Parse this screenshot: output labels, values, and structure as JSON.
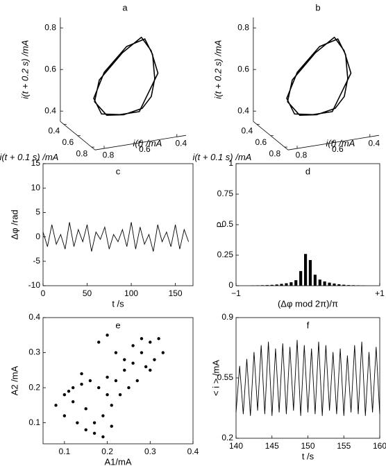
{
  "chart_data": [
    {
      "type": "line3d",
      "title": "a",
      "xlabel": "i(t) /mA",
      "ylabel": "i(t + 0.1 s) /mA",
      "zlabel": "i(t + 0.2 s) /mA",
      "xlim": [
        0.35,
        0.85
      ],
      "ylim": [
        0.35,
        0.85
      ],
      "zlim": [
        0.35,
        0.85
      ],
      "xticks": [
        0.4,
        0.6,
        0.8
      ],
      "yticks": [
        0.4,
        0.6,
        0.8
      ],
      "zticks": [
        0.4,
        0.6,
        0.8
      ],
      "x": [
        0.35,
        0.4,
        0.5,
        0.65,
        0.78,
        0.8,
        0.7,
        0.55,
        0.42,
        0.36,
        0.34,
        0.42,
        0.53,
        0.68,
        0.8,
        0.78,
        0.66,
        0.52,
        0.4,
        0.35
      ],
      "y": [
        0.4,
        0.5,
        0.65,
        0.78,
        0.8,
        0.7,
        0.55,
        0.42,
        0.36,
        0.34,
        0.42,
        0.53,
        0.68,
        0.8,
        0.78,
        0.66,
        0.52,
        0.4,
        0.35,
        0.35
      ],
      "z": [
        0.5,
        0.65,
        0.78,
        0.8,
        0.7,
        0.55,
        0.42,
        0.36,
        0.34,
        0.42,
        0.53,
        0.68,
        0.8,
        0.78,
        0.66,
        0.52,
        0.4,
        0.35,
        0.35,
        0.4
      ],
      "color": "#000000"
    },
    {
      "type": "line3d",
      "title": "b",
      "xlabel": "i(t) /mA",
      "ylabel": "i(t + 0.1 s) /mA",
      "zlabel": "i(t + 0.2 s) /mA",
      "xlim": [
        0.35,
        0.85
      ],
      "ylim": [
        0.35,
        0.85
      ],
      "zlim": [
        0.35,
        0.85
      ],
      "xticks": [
        0.4,
        0.6,
        0.8
      ],
      "yticks": [
        0.4,
        0.6,
        0.8
      ],
      "zticks": [
        0.4,
        0.6,
        0.8
      ],
      "x": [
        0.35,
        0.4,
        0.5,
        0.65,
        0.78,
        0.8,
        0.7,
        0.55,
        0.42,
        0.36,
        0.34,
        0.42,
        0.53,
        0.68,
        0.8,
        0.78,
        0.66,
        0.52,
        0.4,
        0.35
      ],
      "y": [
        0.4,
        0.5,
        0.65,
        0.78,
        0.8,
        0.7,
        0.55,
        0.42,
        0.36,
        0.34,
        0.42,
        0.53,
        0.68,
        0.8,
        0.78,
        0.66,
        0.52,
        0.4,
        0.35,
        0.35
      ],
      "z": [
        0.5,
        0.65,
        0.78,
        0.8,
        0.7,
        0.55,
        0.42,
        0.36,
        0.34,
        0.42,
        0.53,
        0.68,
        0.8,
        0.78,
        0.66,
        0.52,
        0.4,
        0.35,
        0.35,
        0.4
      ],
      "color": "#000000"
    },
    {
      "type": "line",
      "title": "c",
      "xlabel": "t /s",
      "ylabel": "Δφ /rad",
      "xlim": [
        0,
        170
      ],
      "ylim": [
        -10,
        15
      ],
      "xticks": [
        0,
        50,
        100,
        150
      ],
      "yticks": [
        -10,
        -5,
        0,
        5,
        10,
        15
      ],
      "x": [
        0,
        5,
        10,
        15,
        20,
        25,
        30,
        35,
        40,
        45,
        50,
        55,
        60,
        65,
        70,
        75,
        80,
        85,
        90,
        95,
        100,
        105,
        110,
        115,
        120,
        125,
        130,
        135,
        140,
        145,
        150,
        155,
        160,
        165
      ],
      "values": [
        1,
        -2,
        2.5,
        -1.5,
        0.5,
        -2.5,
        3,
        -2,
        1.5,
        -1,
        2.5,
        -3,
        1,
        -0.5,
        2,
        -2.5,
        0.5,
        -1,
        1.5,
        -2,
        3,
        -2.5,
        2,
        -1.5,
        0.5,
        -3,
        2.5,
        -1,
        1,
        -2,
        2.5,
        -2.5,
        1.5,
        -1
      ],
      "color": "#000000"
    },
    {
      "type": "bar",
      "title": "d",
      "xlabel": "(Δφ mod 2π)/π",
      "ylabel": "P",
      "xlim": [
        -1,
        1
      ],
      "ylim": [
        0,
        1
      ],
      "xticks": [
        {
          "value": -1,
          "label": "−1"
        },
        {
          "value": 1,
          "label": "+1"
        }
      ],
      "yticks": [
        0,
        0.25,
        0.5,
        0.75,
        1
      ],
      "x": [
        -0.967,
        -0.9,
        -0.833,
        -0.767,
        -0.7,
        -0.633,
        -0.567,
        -0.5,
        -0.433,
        -0.367,
        -0.3,
        -0.233,
        -0.167,
        -0.1,
        -0.033,
        0.033,
        0.1,
        0.167,
        0.233,
        0.3,
        0.367,
        0.433,
        0.5,
        0.567,
        0.633,
        0.7,
        0.767,
        0.833,
        0.9,
        0.967
      ],
      "values": [
        0,
        0,
        0,
        0.002,
        0.003,
        0.004,
        0.005,
        0.007,
        0.01,
        0.015,
        0.02,
        0.028,
        0.045,
        0.12,
        0.26,
        0.21,
        0.09,
        0.05,
        0.035,
        0.025,
        0.018,
        0.012,
        0.008,
        0.005,
        0.004,
        0.003,
        0.002,
        0,
        0,
        0
      ],
      "color": "#000000"
    },
    {
      "type": "scatter",
      "title": "e",
      "xlabel": "A1/mA",
      "ylabel": "A2 /mA",
      "xlim": [
        0.05,
        0.4
      ],
      "ylim": [
        0.04,
        0.4
      ],
      "xticks": [
        0.1,
        0.2,
        0.3,
        0.4
      ],
      "yticks": [
        0.1,
        0.2,
        0.3,
        0.4
      ],
      "x": [
        0.08,
        0.1,
        0.12,
        0.14,
        0.16,
        0.18,
        0.2,
        0.22,
        0.24,
        0.26,
        0.28,
        0.3,
        0.32,
        0.1,
        0.13,
        0.15,
        0.17,
        0.19,
        0.21,
        0.23,
        0.25,
        0.27,
        0.29,
        0.31,
        0.33,
        0.18,
        0.2,
        0.22,
        0.24,
        0.26,
        0.28,
        0.3,
        0.12,
        0.15,
        0.17,
        0.19,
        0.21,
        0.11,
        0.14,
        0.2
      ],
      "values": [
        0.15,
        0.18,
        0.2,
        0.21,
        0.22,
        0.2,
        0.23,
        0.22,
        0.25,
        0.27,
        0.3,
        0.33,
        0.34,
        0.12,
        0.1,
        0.08,
        0.07,
        0.12,
        0.15,
        0.18,
        0.2,
        0.22,
        0.26,
        0.28,
        0.3,
        0.33,
        0.35,
        0.3,
        0.28,
        0.32,
        0.34,
        0.25,
        0.16,
        0.14,
        0.1,
        0.06,
        0.09,
        0.19,
        0.24,
        0.18
      ],
      "color": "#000000"
    },
    {
      "type": "line",
      "title": "f",
      "xlabel": "t /s",
      "ylabel": "< i > /mA",
      "xlim": [
        140,
        160
      ],
      "ylim": [
        0.2,
        0.9
      ],
      "xticks": [
        140,
        145,
        150,
        155,
        160
      ],
      "yticks": [
        0.2,
        0.55,
        0.9
      ],
      "x": [
        140,
        140.5,
        141,
        141.5,
        142,
        142.5,
        143,
        143.5,
        144,
        144.5,
        145,
        145.5,
        146,
        146.5,
        147,
        147.5,
        148,
        148.5,
        149,
        149.5,
        150,
        150.5,
        151,
        151.5,
        152,
        152.5,
        153,
        153.5,
        154,
        154.5,
        155,
        155.5,
        156,
        156.5,
        157,
        157.5,
        158,
        158.5,
        159,
        159.5,
        160
      ],
      "values": [
        0.35,
        0.62,
        0.34,
        0.66,
        0.33,
        0.7,
        0.36,
        0.74,
        0.34,
        0.76,
        0.33,
        0.72,
        0.35,
        0.75,
        0.34,
        0.73,
        0.36,
        0.77,
        0.33,
        0.74,
        0.35,
        0.72,
        0.34,
        0.76,
        0.33,
        0.74,
        0.36,
        0.7,
        0.34,
        0.72,
        0.33,
        0.68,
        0.35,
        0.74,
        0.34,
        0.76,
        0.33,
        0.7,
        0.35,
        0.73,
        0.34
      ],
      "color": "#000000"
    }
  ]
}
